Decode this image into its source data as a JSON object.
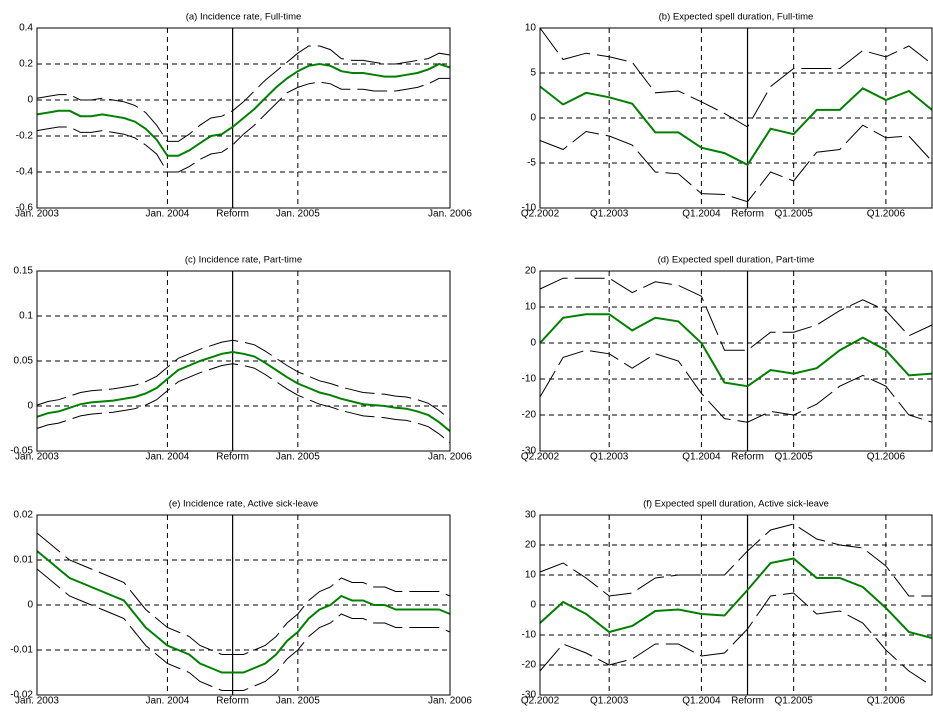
{
  "chart_data": [
    {
      "type": "line",
      "title": "(a) Incidence rate, Full-time",
      "categories": [
        "Jan. 2003",
        null,
        null,
        null,
        null,
        null,
        null,
        null,
        null,
        null,
        null,
        null,
        "Jan. 2004",
        null,
        null,
        null,
        null,
        null,
        "Reform",
        null,
        null,
        null,
        null,
        null,
        "Jan. 2005",
        null,
        null,
        null,
        null,
        null,
        null,
        null,
        null,
        null,
        null,
        null,
        null,
        null,
        "Jan. 2006"
      ],
      "vline": 18,
      "series": [
        {
          "color": "#008000",
          "values": [
            -0.08,
            -0.07,
            -0.06,
            -0.06,
            -0.09,
            -0.09,
            -0.08,
            -0.09,
            -0.1,
            -0.12,
            -0.16,
            -0.22,
            -0.31,
            -0.31,
            -0.28,
            -0.24,
            -0.2,
            -0.19,
            -0.15,
            -0.1,
            -0.05,
            0.01,
            0.07,
            0.12,
            0.16,
            0.19,
            0.2,
            0.19,
            0.16,
            0.15,
            0.15,
            0.14,
            0.13,
            0.13,
            0.14,
            0.15,
            0.17,
            0.2,
            0.18
          ]
        },
        {
          "color": "#000000",
          "line_style": "dashed",
          "values": [
            0.01,
            0.02,
            0.03,
            0.03,
            0,
            0,
            0.01,
            0,
            -0.01,
            -0.03,
            -0.07,
            -0.14,
            -0.23,
            -0.23,
            -0.19,
            -0.14,
            -0.1,
            -0.09,
            -0.06,
            -0.01,
            0.05,
            0.11,
            0.16,
            0.21,
            0.26,
            0.3,
            0.3,
            0.28,
            0.23,
            0.22,
            0.22,
            0.21,
            0.2,
            0.2,
            0.21,
            0.22,
            0.23,
            0.26,
            0.25
          ]
        },
        {
          "color": "#000000",
          "line_style": "dashed",
          "values": [
            -0.17,
            -0.16,
            -0.15,
            -0.15,
            -0.18,
            -0.18,
            -0.17,
            -0.18,
            -0.19,
            -0.21,
            -0.25,
            -0.3,
            -0.4,
            -0.4,
            -0.37,
            -0.33,
            -0.3,
            -0.29,
            -0.25,
            -0.19,
            -0.14,
            -0.08,
            -0.02,
            0.04,
            0.07,
            0.09,
            0.1,
            0.09,
            0.06,
            0.06,
            0.06,
            0.05,
            0.05,
            0.05,
            0.06,
            0.07,
            0.09,
            0.12,
            0.12
          ]
        }
      ],
      "ylim": [
        -0.6,
        0.4
      ],
      "yticks": [
        -0.6,
        -0.4,
        -0.2,
        0,
        0.2,
        0.4
      ],
      "grid": true
    },
    {
      "type": "line",
      "title": "(b) Expected spell duration, Full-time",
      "categories": [
        "Q2.2002",
        null,
        null,
        "Q1.2003",
        null,
        null,
        null,
        "Q1.2004",
        null,
        "Reform",
        null,
        "Q1.2005",
        null,
        null,
        null,
        "Q1.2006",
        null,
        null
      ],
      "vline": 9,
      "series": [
        {
          "color": "#008000",
          "values": [
            3.5,
            1.5,
            2.8,
            2.3,
            1.6,
            -1.6,
            -1.6,
            -3.3,
            -3.9,
            -5.2,
            -1.2,
            -1.8,
            0.9,
            0.9,
            3.3,
            2.0,
            3.0,
            0.9
          ]
        },
        {
          "color": "#000000",
          "line_style": "dashed",
          "values": [
            10,
            6.5,
            7.2,
            6.8,
            6.2,
            2.8,
            3,
            1.8,
            0.5,
            -1,
            3.5,
            5.5,
            5.5,
            5.5,
            7.5,
            6.8,
            8,
            6
          ]
        },
        {
          "color": "#000000",
          "line_style": "dashed",
          "values": [
            -2.5,
            -3.5,
            -1.5,
            -2,
            -3,
            -6,
            -6.2,
            -8.4,
            -8.5,
            -9.3,
            -6,
            -7,
            -3.8,
            -3.5,
            -0.8,
            -2.2,
            -2,
            -4.8
          ]
        }
      ],
      "ylim": [
        -10,
        10
      ],
      "yticks": [
        -10,
        -5,
        0,
        5,
        10
      ],
      "grid": true
    },
    {
      "type": "line",
      "title": "(c) Incidence rate, Part-time",
      "categories": [
        "Jan. 2003",
        null,
        null,
        null,
        null,
        null,
        null,
        null,
        null,
        null,
        null,
        null,
        "Jan. 2004",
        null,
        null,
        null,
        null,
        null,
        "Reform",
        null,
        null,
        null,
        null,
        null,
        "Jan. 2005",
        null,
        null,
        null,
        null,
        null,
        null,
        null,
        null,
        null,
        null,
        null,
        null,
        null,
        "Jan. 2006"
      ],
      "vline": 18,
      "series": [
        {
          "color": "#008000",
          "values": [
            -0.012,
            -0.008,
            -0.006,
            -0.002,
            0.002,
            0.004,
            0.005,
            0.006,
            0.008,
            0.01,
            0.014,
            0.02,
            0.03,
            0.04,
            0.045,
            0.05,
            0.054,
            0.058,
            0.06,
            0.058,
            0.055,
            0.048,
            0.04,
            0.032,
            0.025,
            0.02,
            0.015,
            0.012,
            0.008,
            0.005,
            0.002,
            0.001,
            0,
            -0.002,
            -0.003,
            -0.006,
            -0.01,
            -0.018,
            -0.028
          ]
        },
        {
          "color": "#000000",
          "line_style": "dashed",
          "values": [
            0.001,
            0.005,
            0.007,
            0.011,
            0.015,
            0.017,
            0.018,
            0.019,
            0.021,
            0.023,
            0.027,
            0.033,
            0.043,
            0.053,
            0.058,
            0.063,
            0.067,
            0.071,
            0.073,
            0.071,
            0.068,
            0.061,
            0.053,
            0.045,
            0.038,
            0.033,
            0.028,
            0.025,
            0.021,
            0.018,
            0.015,
            0.014,
            0.013,
            0.011,
            0.01,
            0.007,
            0.003,
            -0.005,
            -0.015
          ]
        },
        {
          "color": "#000000",
          "line_style": "dashed",
          "values": [
            -0.025,
            -0.021,
            -0.019,
            -0.015,
            -0.011,
            -0.009,
            -0.008,
            -0.007,
            -0.005,
            -0.003,
            0.001,
            0.007,
            0.017,
            0.027,
            0.032,
            0.037,
            0.041,
            0.045,
            0.047,
            0.045,
            0.042,
            0.035,
            0.027,
            0.019,
            0.012,
            0.007,
            0.002,
            -0.001,
            -0.005,
            -0.008,
            -0.011,
            -0.012,
            -0.013,
            -0.015,
            -0.016,
            -0.019,
            -0.023,
            -0.031,
            -0.041
          ]
        }
      ],
      "ylim": [
        -0.05,
        0.15
      ],
      "yticks": [
        -0.05,
        0,
        0.05,
        0.1,
        0.15
      ],
      "grid": true
    },
    {
      "type": "line",
      "title": "(d) Expected spell duration, Part-time",
      "categories": [
        "Q2.2002",
        null,
        null,
        "Q1.2003",
        null,
        null,
        null,
        "Q1.2004",
        null,
        "Reform",
        null,
        "Q1.2005",
        null,
        null,
        null,
        "Q1.2006",
        null,
        null
      ],
      "vline": 9,
      "series": [
        {
          "color": "#008000",
          "values": [
            0,
            7,
            8,
            8,
            3.5,
            7,
            6,
            0,
            -11,
            -12,
            -7.5,
            -8.5,
            -7,
            -2,
            1.5,
            -2,
            -9,
            -8.5
          ]
        },
        {
          "color": "#000000",
          "line_style": "dashed",
          "values": [
            15,
            18,
            18,
            18,
            14,
            17,
            16,
            13,
            -2,
            -2,
            3,
            3,
            5,
            9,
            12,
            9,
            2,
            5
          ]
        },
        {
          "color": "#000000",
          "line_style": "dashed",
          "values": [
            -15,
            -4,
            -2,
            -3,
            -7,
            -3,
            -5,
            -14,
            -21,
            -22,
            -19,
            -20,
            -17,
            -12,
            -9,
            -12,
            -20,
            -22
          ]
        }
      ],
      "ylim": [
        -30,
        20
      ],
      "yticks": [
        -30,
        -20,
        -10,
        0,
        10,
        20
      ],
      "grid": true
    },
    {
      "type": "line",
      "title": "(e) Incidence rate, Active sick-leave",
      "categories": [
        "Jan. 2003",
        null,
        null,
        null,
        null,
        null,
        null,
        null,
        null,
        null,
        null,
        null,
        "Jan. 2004",
        null,
        null,
        null,
        null,
        null,
        "Reform",
        null,
        null,
        null,
        null,
        null,
        "Jan. 2005",
        null,
        null,
        null,
        null,
        null,
        null,
        null,
        null,
        null,
        null,
        null,
        null,
        null,
        "Jan. 2006"
      ],
      "vline": 18,
      "series": [
        {
          "color": "#008000",
          "values": [
            0.012,
            0.01,
            0.008,
            0.006,
            0.005,
            0.004,
            0.003,
            0.002,
            0.001,
            -0.002,
            -0.005,
            -0.007,
            -0.009,
            -0.01,
            -0.011,
            -0.013,
            -0.014,
            -0.015,
            -0.015,
            -0.015,
            -0.014,
            -0.013,
            -0.011,
            -0.008,
            -0.006,
            -0.003,
            -0.001,
            0,
            0.002,
            0.001,
            0.001,
            0,
            0,
            -0.001,
            -0.001,
            -0.001,
            -0.001,
            -0.001,
            -0.002
          ]
        },
        {
          "color": "#000000",
          "line_style": "dashed",
          "values": [
            0.016,
            0.014,
            0.012,
            0.01,
            0.009,
            0.008,
            0.007,
            0.006,
            0.005,
            0.002,
            -0.001,
            -0.003,
            -0.005,
            -0.006,
            -0.007,
            -0.009,
            -0.01,
            -0.011,
            -0.011,
            -0.011,
            -0.01,
            -0.009,
            -0.007,
            -0.004,
            -0.002,
            0.001,
            0.003,
            0.004,
            0.006,
            0.005,
            0.005,
            0.004,
            0.004,
            0.003,
            0.003,
            0.003,
            0.003,
            0.003,
            0.002
          ]
        },
        {
          "color": "#000000",
          "line_style": "dashed",
          "values": [
            0.008,
            0.006,
            0.004,
            0.002,
            0.001,
            0,
            -0.001,
            -0.002,
            -0.003,
            -0.006,
            -0.009,
            -0.011,
            -0.013,
            -0.014,
            -0.015,
            -0.017,
            -0.018,
            -0.019,
            -0.019,
            -0.019,
            -0.018,
            -0.017,
            -0.015,
            -0.012,
            -0.01,
            -0.007,
            -0.005,
            -0.004,
            -0.002,
            -0.003,
            -0.003,
            -0.004,
            -0.004,
            -0.005,
            -0.005,
            -0.005,
            -0.005,
            -0.005,
            -0.006
          ]
        }
      ],
      "ylim": [
        -0.02,
        0.02
      ],
      "yticks": [
        -0.02,
        -0.01,
        0,
        0.01,
        0.02
      ],
      "grid": true
    },
    {
      "type": "line",
      "title": "(f) Expected spell duration, Active sick-leave",
      "categories": [
        "Q2.2002",
        null,
        null,
        "Q1.2003",
        null,
        null,
        null,
        "Q1.2004",
        null,
        "Reform",
        null,
        "Q1.2005",
        null,
        null,
        null,
        "Q1.2006",
        null,
        null
      ],
      "vline": 9,
      "series": [
        {
          "color": "#008000",
          "values": [
            -6,
            1,
            -3,
            -9,
            -7,
            -2,
            -1.5,
            -3,
            -3.5,
            5,
            14,
            15.5,
            9,
            9,
            6,
            -1,
            -9,
            -11
          ]
        },
        {
          "color": "#000000",
          "line_style": "dashed",
          "values": [
            11,
            14,
            9,
            3,
            4,
            9,
            10,
            10,
            10,
            18,
            25,
            27,
            22,
            20,
            19,
            13,
            3,
            3
          ]
        },
        {
          "color": "#000000",
          "line_style": "dashed",
          "values": [
            -22,
            -13,
            -16,
            -20,
            -18,
            -13,
            -13,
            -17,
            -16,
            -8,
            3,
            4,
            -3,
            -2,
            -6,
            -15,
            -22,
            -27
          ]
        }
      ],
      "ylim": [
        -30,
        30
      ],
      "yticks": [
        -30,
        -20,
        -10,
        0,
        10,
        20,
        30
      ],
      "grid": true
    }
  ]
}
